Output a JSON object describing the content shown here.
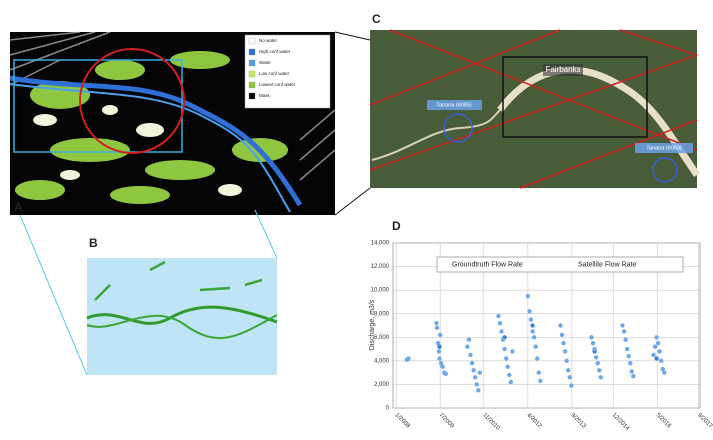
{
  "panels": {
    "a": "A",
    "b": "B",
    "c": "C",
    "d": "D"
  },
  "map_legend": [
    "No water",
    "High conf water",
    "Water",
    "Low conf water",
    "Lowest conf water",
    "Mask"
  ],
  "map_labels": {
    "city": "Fairbanks",
    "gauge_west": "Tanana (6085)",
    "gauge_east": "Tanana (6050)"
  },
  "chart_data": {
    "type": "scatter",
    "y_label": "Discharge, m3/s",
    "xlim": [
      2007.9,
      2017.8
    ],
    "ylim": [
      0,
      14000
    ],
    "xticks": [
      {
        "value": 2008.0,
        "label": "1/2008"
      },
      {
        "value": 2009.42,
        "label": "7/2009"
      },
      {
        "value": 2010.83,
        "label": "11/2010"
      },
      {
        "value": 2012.25,
        "label": "4/2012"
      },
      {
        "value": 2013.67,
        "label": "9/2013"
      },
      {
        "value": 2015.0,
        "label": "12/2014"
      },
      {
        "value": 2016.42,
        "label": "5/2016"
      },
      {
        "value": 2017.75,
        "label": "9/2017"
      }
    ],
    "yticks": [
      0,
      {
        "value": 2000,
        "label": "2,000"
      },
      {
        "value": 4000,
        "label": "4,000"
      },
      {
        "value": 6000,
        "label": "6,000"
      },
      {
        "value": 8000,
        "label": "8,000"
      },
      {
        "value": 10000,
        "label": "10,000"
      },
      {
        "value": 12000,
        "label": "12,000"
      },
      {
        "value": 14000,
        "label": "14,000"
      }
    ],
    "grid": true,
    "series": [
      {
        "name": "Groundtruth Flow Rate",
        "color": "#3d7fd6",
        "x": [
          2009.4,
          2011.5,
          2012.4,
          2014.4,
          2016.4
        ],
        "values": [
          5200,
          6000,
          7000,
          4800,
          4200
        ]
      },
      {
        "name": "Satellite Flow Rate",
        "color": "#6fa8e8",
        "x": [
          2008.35,
          2008.4,
          2009.3,
          2009.32,
          2009.35,
          2009.38,
          2009.4,
          2009.42,
          2009.45,
          2009.5,
          2009.55,
          2009.6,
          2010.3,
          2010.35,
          2010.4,
          2010.45,
          2010.5,
          2010.55,
          2010.6,
          2010.65,
          2010.7,
          2011.3,
          2011.35,
          2011.4,
          2011.45,
          2011.5,
          2011.55,
          2011.6,
          2011.65,
          2011.7,
          2011.75,
          2012.25,
          2012.3,
          2012.35,
          2012.4,
          2012.45,
          2012.5,
          2012.55,
          2012.6,
          2012.65,
          2013.3,
          2013.35,
          2013.4,
          2013.45,
          2013.5,
          2013.55,
          2013.6,
          2013.65,
          2014.3,
          2014.35,
          2014.4,
          2014.45,
          2014.5,
          2014.55,
          2014.6,
          2015.3,
          2015.35,
          2015.4,
          2015.45,
          2015.5,
          2015.55,
          2015.6,
          2015.65,
          2016.3,
          2016.35,
          2016.4,
          2016.45,
          2016.5,
          2016.55,
          2016.6,
          2016.65
        ],
        "values": [
          4100,
          4200,
          7200,
          6800,
          5500,
          4800,
          4200,
          6200,
          3800,
          3500,
          3000,
          2900,
          5200,
          5800,
          4500,
          3800,
          3200,
          2600,
          2000,
          1500,
          3000,
          7800,
          7200,
          6500,
          5800,
          5000,
          4200,
          3500,
          2800,
          2200,
          4800,
          9500,
          8200,
          7500,
          6500,
          6000,
          5200,
          4200,
          3000,
          2300,
          7000,
          6200,
          5500,
          4800,
          4000,
          3200,
          2600,
          1900,
          6000,
          5500,
          5000,
          4300,
          3800,
          3200,
          2600,
          7000,
          6500,
          5800,
          5000,
          4400,
          3800,
          3100,
          2700,
          4500,
          5200,
          6000,
          5500,
          4800,
          4000,
          3300,
          3000
        ]
      }
    ]
  }
}
